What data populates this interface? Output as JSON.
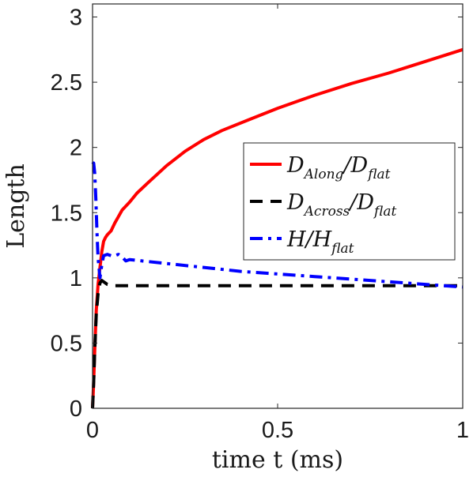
{
  "chart_data": {
    "type": "line",
    "xlabel": "time t (ms)",
    "ylabel": "Length",
    "xlim": [
      0,
      1
    ],
    "ylim": [
      0,
      3.1
    ],
    "x_ticks": [
      0,
      0.5,
      1
    ],
    "x_tick_labels": [
      "0",
      "0.5",
      "1"
    ],
    "y_ticks": [
      0,
      0.5,
      1,
      1.5,
      2,
      2.5,
      3
    ],
    "y_tick_labels": [
      "0",
      "0.5",
      "1",
      "1.5",
      "2",
      "2.5",
      "3"
    ],
    "grid": false,
    "box": true,
    "legend_position": "right",
    "series": [
      {
        "name": "D_Along/D_flat",
        "legend": {
          "main": "D",
          "sub": "Along",
          "sep": "/D",
          "sub2": "flat"
        },
        "color": "#ff0000",
        "style": "solid",
        "x": [
          0,
          0.003,
          0.006,
          0.01,
          0.015,
          0.02,
          0.025,
          0.03,
          0.035,
          0.04,
          0.05,
          0.06,
          0.07,
          0.08,
          0.1,
          0.12,
          0.15,
          0.2,
          0.25,
          0.3,
          0.35,
          0.42,
          0.5,
          0.6,
          0.7,
          0.8,
          0.9,
          1.0
        ],
        "y": [
          0,
          0.2,
          0.45,
          0.75,
          0.95,
          1.08,
          1.2,
          1.28,
          1.31,
          1.33,
          1.36,
          1.42,
          1.47,
          1.52,
          1.58,
          1.65,
          1.73,
          1.86,
          1.97,
          2.06,
          2.13,
          2.21,
          2.3,
          2.4,
          2.49,
          2.57,
          2.66,
          2.75
        ]
      },
      {
        "name": "D_Across/D_flat",
        "legend": {
          "main": "D",
          "sub": "Across",
          "sep": "/D",
          "sub2": "flat"
        },
        "color": "#000000",
        "style": "dashed",
        "x": [
          0,
          0.003,
          0.006,
          0.01,
          0.015,
          0.02,
          0.025,
          0.03,
          0.04,
          0.06,
          0.1,
          0.2,
          0.4,
          0.6,
          0.8,
          1.0
        ],
        "y": [
          0,
          0.2,
          0.45,
          0.72,
          0.88,
          0.96,
          0.98,
          0.97,
          0.95,
          0.94,
          0.94,
          0.94,
          0.94,
          0.94,
          0.94,
          0.94
        ]
      },
      {
        "name": "H/H_flat",
        "legend": {
          "main": "H",
          "sub": "",
          "sep": "/H",
          "sub2": "flat"
        },
        "color": "#0000ff",
        "style": "dashdot",
        "x": [
          0,
          0.003,
          0.006,
          0.009,
          0.012,
          0.015,
          0.02,
          0.025,
          0.03,
          0.04,
          0.05,
          0.06,
          0.07,
          0.08,
          0.09,
          0.1,
          0.2,
          0.3,
          0.4,
          0.5,
          0.6,
          0.7,
          0.8,
          0.9,
          1.0
        ],
        "y": [
          1.87,
          1.88,
          1.8,
          1.6,
          1.35,
          1.15,
          1.0,
          1.1,
          1.17,
          1.18,
          1.17,
          1.17,
          1.18,
          1.16,
          1.13,
          1.14,
          1.11,
          1.08,
          1.05,
          1.03,
          1.01,
          0.99,
          0.97,
          0.95,
          0.93
        ]
      }
    ]
  }
}
